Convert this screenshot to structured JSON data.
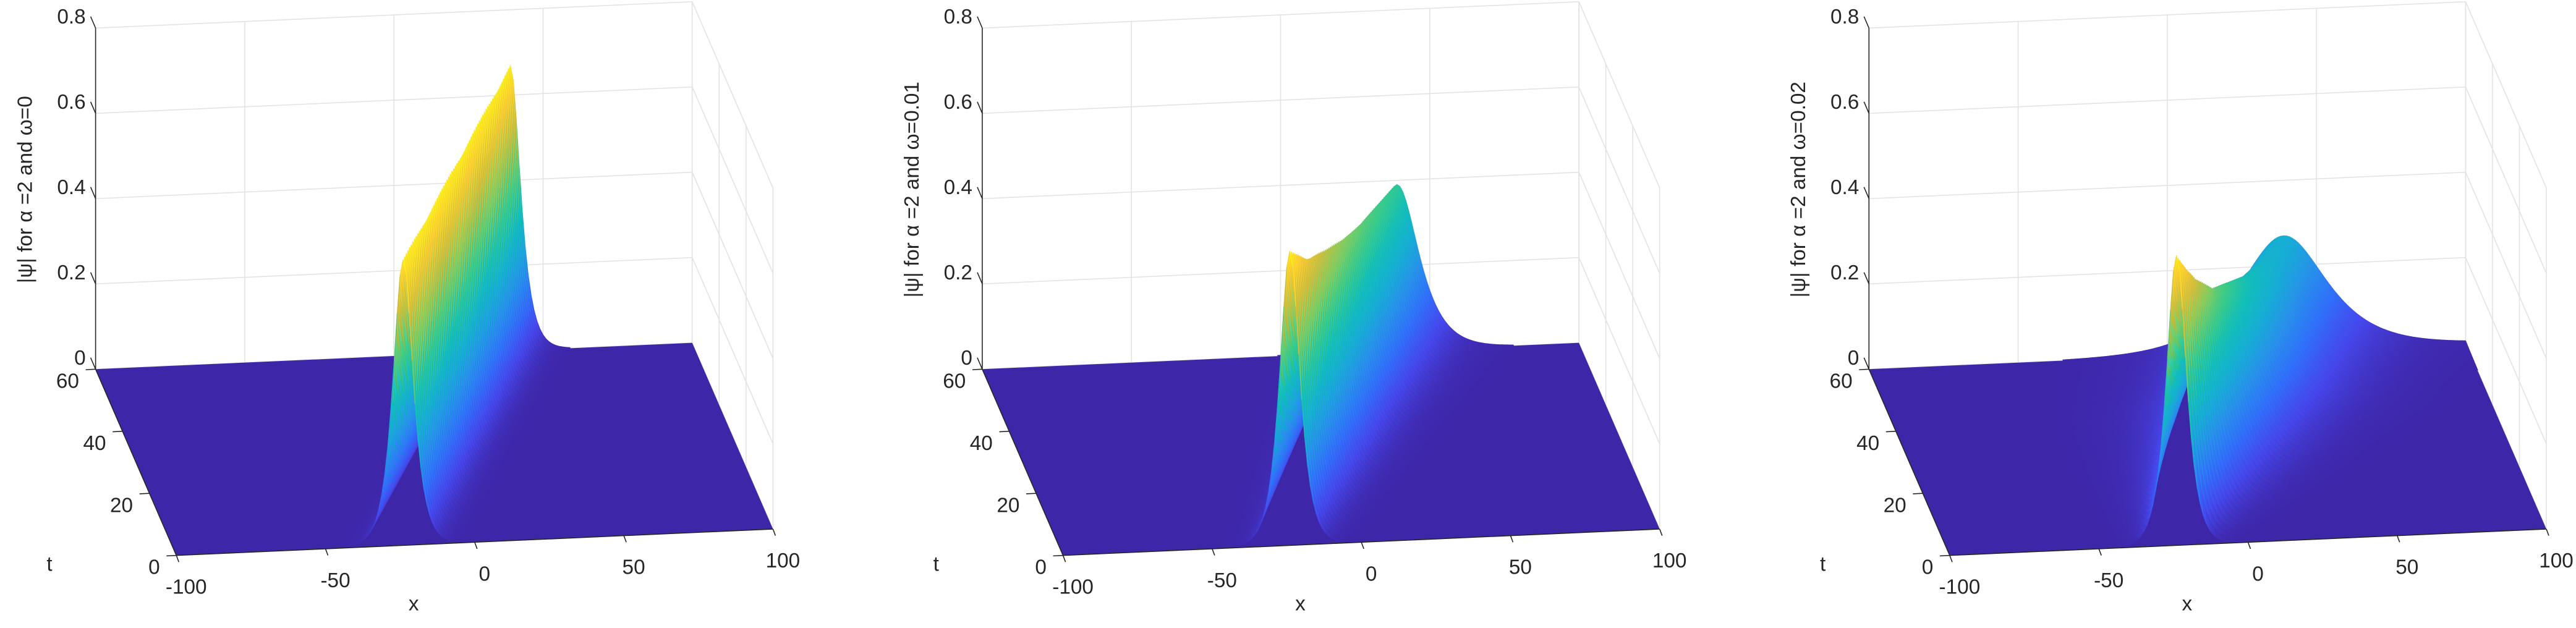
{
  "chart_data": [
    {
      "type": "surface",
      "zlabel": "|ψ|  for α =2 and ω=0",
      "xlabel": "x",
      "ylabel": "t",
      "xlim": [
        -100,
        100
      ],
      "ylim": [
        0,
        60
      ],
      "zlim": [
        0,
        0.8
      ],
      "xticks": [
        -100,
        -50,
        0,
        50,
        100
      ],
      "yticks": [
        0,
        20,
        40,
        60
      ],
      "zticks": [
        0,
        0.2,
        0.4,
        0.6,
        0.8
      ],
      "colormap": "parula",
      "grid": true,
      "ridge": {
        "t": [
          0,
          10,
          20,
          30,
          40,
          50,
          60
        ],
        "x": [
          -24,
          -13.5,
          -3,
          7.5,
          18,
          28.5,
          39
        ],
        "z": [
          0.67,
          0.67,
          0.67,
          0.67,
          0.67,
          0.67,
          0.67
        ],
        "width": [
          3,
          3,
          3,
          3,
          3,
          3,
          3
        ]
      }
    },
    {
      "type": "surface",
      "zlabel": "|ψ|  for α =2 and ω=0.01",
      "xlabel": "x",
      "ylabel": "t",
      "xlim": [
        -100,
        100
      ],
      "ylim": [
        0,
        60
      ],
      "zlim": [
        0,
        0.8
      ],
      "xticks": [
        -100,
        -50,
        0,
        50,
        100
      ],
      "yticks": [
        0,
        20,
        40,
        60
      ],
      "zticks": [
        0,
        0.2,
        0.4,
        0.6,
        0.8
      ],
      "colormap": "parula",
      "grid": true,
      "ridge": {
        "t": [
          0,
          10,
          20,
          30,
          40,
          50,
          60
        ],
        "x": [
          -24,
          -13.5,
          -3,
          7.5,
          18,
          28.5,
          39
        ],
        "z": [
          0.69,
          0.6,
          0.54,
          0.49,
          0.45,
          0.42,
          0.39
        ],
        "width": [
          3,
          3.6,
          4.2,
          4.8,
          5.4,
          6,
          6.5
        ]
      }
    },
    {
      "type": "surface",
      "zlabel": "|ψ|  for α =2 and ω=0.02",
      "xlabel": "x",
      "ylabel": "t",
      "xlim": [
        -100,
        100
      ],
      "ylim": [
        0,
        60
      ],
      "zlim": [
        0,
        0.8
      ],
      "xticks": [
        -100,
        -50,
        0,
        50,
        100
      ],
      "yticks": [
        0,
        20,
        40,
        60
      ],
      "zticks": [
        0,
        0.2,
        0.4,
        0.6,
        0.8
      ],
      "colormap": "parula",
      "grid": true,
      "ridge": {
        "t": [
          0,
          10,
          20,
          30,
          40,
          50,
          60
        ],
        "x": [
          -24,
          -13.5,
          -3,
          7.5,
          18,
          28.5,
          39
        ],
        "z": [
          0.68,
          0.55,
          0.45,
          0.39,
          0.33,
          0.29,
          0.27
        ],
        "width": [
          3,
          5,
          7,
          9,
          11,
          12,
          13
        ]
      }
    }
  ]
}
